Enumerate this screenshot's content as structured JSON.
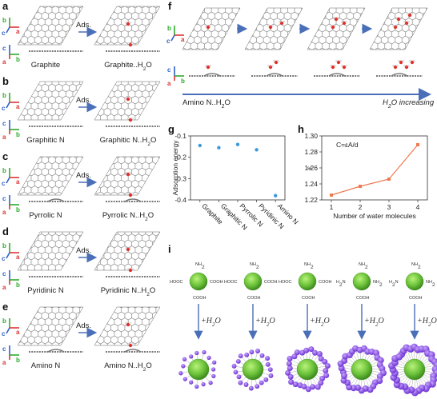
{
  "panels": {
    "a": {
      "letter": "a",
      "left": "Graphite",
      "right": "Graphite..H",
      "right_sub": "2",
      "right_tail": "O",
      "arrow": "Ads."
    },
    "b": {
      "letter": "b",
      "left": "Graphitic N",
      "right": "Graphitic N..H",
      "right_sub": "2",
      "right_tail": "O",
      "arrow": "Ads."
    },
    "c": {
      "letter": "c",
      "left": "Pyrrolic N",
      "right": "Pyrrolic N..H",
      "right_sub": "2",
      "right_tail": "O",
      "arrow": "Ads."
    },
    "d": {
      "letter": "d",
      "left": "Pyridinic N",
      "right": "Pyridinic N..H",
      "right_sub": "2",
      "right_tail": "O",
      "arrow": "Ads."
    },
    "e": {
      "letter": "e",
      "left": "Amino N",
      "right": "Amino N..H",
      "right_sub": "2",
      "right_tail": "O",
      "arrow": "Ads."
    }
  },
  "panel_f": {
    "letter": "f",
    "left_caption": "Amino N..H",
    "left_sub": "2",
    "left_tail": "O",
    "right_caption_pre": "H",
    "right_caption_sub": "2",
    "right_caption_tail": "O increasing"
  },
  "axes_letters": {
    "a": "a",
    "b": "b",
    "c": "c"
  },
  "chart_data": [
    {
      "panel": "g",
      "type": "scatter",
      "ylabel": "Adsorption energy",
      "xlabel": "",
      "categories": [
        "Graphite",
        "Graphitic N",
        "Pyrrolic N",
        "Pyridinic N",
        "Amino N"
      ],
      "values": [
        -0.145,
        -0.155,
        -0.14,
        -0.165,
        -0.38
      ],
      "ylim": [
        -0.4,
        -0.1
      ],
      "yticks": [
        "-0.1",
        "-0.2",
        "-0.3",
        "-0.4"
      ],
      "color": "#3a9ad9"
    },
    {
      "panel": "h",
      "type": "line",
      "ylabel": "ε",
      "xlabel": "Number of water molecules",
      "annotation": "C=εA/d",
      "x": [
        1,
        2,
        3,
        4
      ],
      "y": [
        1.226,
        1.237,
        1.246,
        1.289
      ],
      "xticks": [
        "1",
        "2",
        "3",
        "4"
      ],
      "yticks": [
        "1.22",
        "1.24",
        "1.26",
        "1.28",
        "1.30"
      ],
      "ylim": [
        1.22,
        1.3
      ],
      "color": "#f07a50"
    }
  ],
  "panel_i": {
    "letter": "i",
    "arrow_label_pre": "+H",
    "arrow_label_sub": "2",
    "arrow_label_tail": "O",
    "groups": {
      "nh2": "NH",
      "nh2_sub": "2",
      "h2n": "H",
      "h2n_sub": "2",
      "h2n_tail": "N",
      "hooc": "HOOC",
      "cooh": "COOH"
    },
    "water_levels": [
      0.2,
      0.35,
      0.6,
      0.8,
      1.0
    ]
  }
}
